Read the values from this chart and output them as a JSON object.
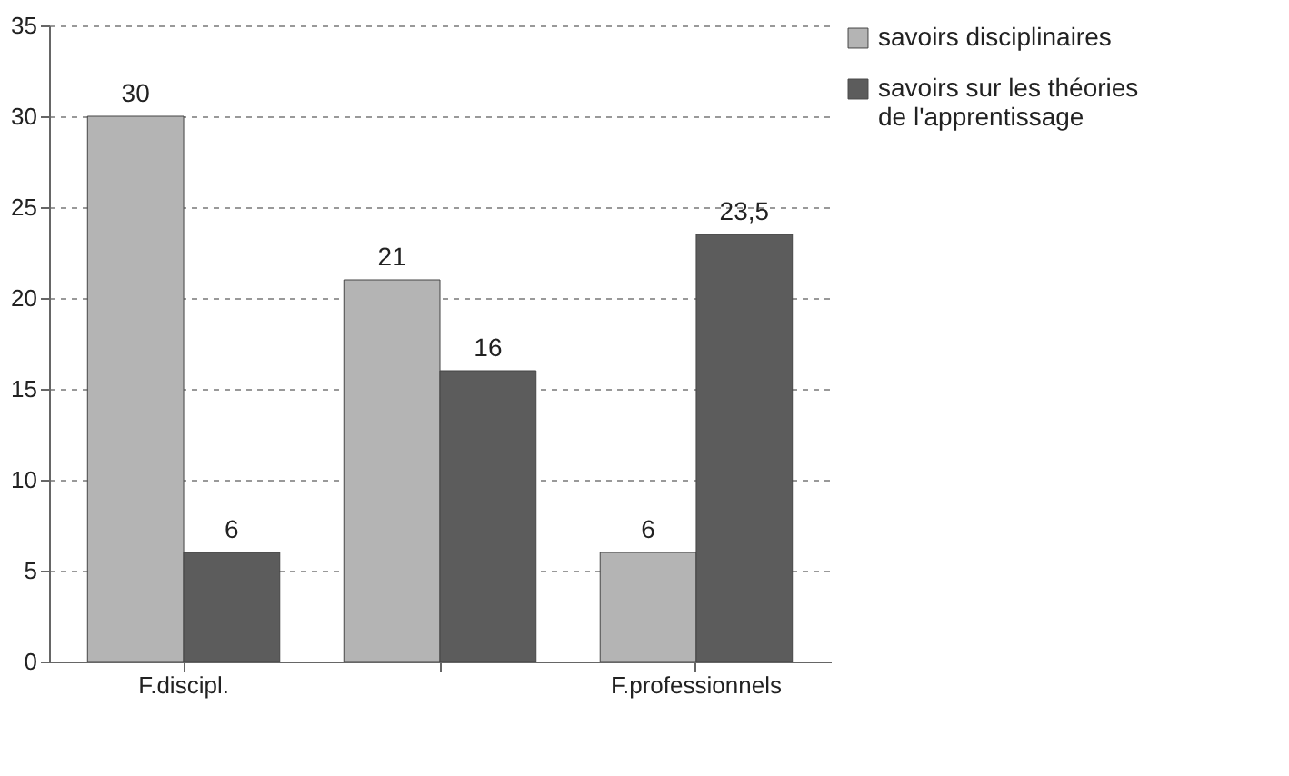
{
  "chart_data": {
    "type": "bar",
    "categories": [
      "F.discipl.",
      null,
      "F.professionnels"
    ],
    "series": [
      {
        "name": "savoirs disciplinaires",
        "color": "#b4b4b4",
        "values": [
          30,
          21,
          6
        ],
        "value_labels": [
          "30",
          "21",
          "6"
        ]
      },
      {
        "name": "savoirs sur les théories de l'apprentissage",
        "color": "#5c5c5c",
        "values": [
          6,
          16,
          23.5
        ],
        "value_labels": [
          "6",
          "16",
          "23,5"
        ]
      }
    ],
    "ylim": [
      0,
      35
    ],
    "yticks": [
      0,
      5,
      10,
      15,
      20,
      25,
      30,
      35
    ],
    "grid": "y",
    "legend": "right"
  }
}
